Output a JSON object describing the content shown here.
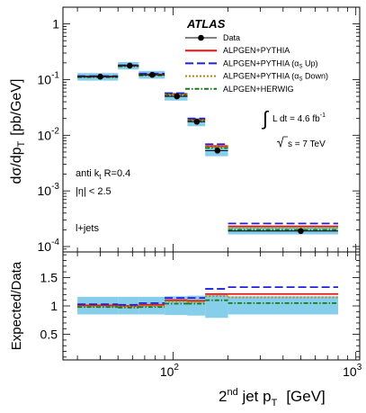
{
  "chart_data": [
    {
      "type": "line",
      "panel": "cross-section",
      "experiment_label": "ATLAS",
      "ylabel": "dσ/dp_T  [pb/GeV]",
      "ylabel_parts": {
        "main": "dσ/dp",
        "sub": "T",
        "unit": "[pb/GeV]"
      },
      "xscale": "log",
      "yscale": "log",
      "xlim": [
        25,
        1050
      ],
      "ylim": [
        8e-05,
        2
      ],
      "y_tick_labels": [
        {
          "value": 0.0001,
          "base": "10",
          "exp": "-4"
        },
        {
          "value": 0.001,
          "base": "10",
          "exp": "-3"
        },
        {
          "value": 0.01,
          "base": "10",
          "exp": "-2"
        },
        {
          "value": 0.1,
          "base": "10",
          "exp": "-1"
        },
        {
          "value": 1,
          "base": "1",
          "exp": ""
        }
      ],
      "bins": [
        [
          30,
          50
        ],
        [
          50,
          65
        ],
        [
          65,
          90
        ],
        [
          90,
          120
        ],
        [
          120,
          150
        ],
        [
          150,
          200
        ],
        [
          200,
          800
        ]
      ],
      "data": {
        "name": "Data",
        "x": [
          40,
          58,
          77,
          105,
          135,
          175,
          500
        ],
        "y": [
          0.113,
          0.178,
          0.122,
          0.05,
          0.0175,
          0.0053,
          0.00019
        ]
      },
      "uncertainty_band": {
        "lo": [
          0.096,
          0.152,
          0.104,
          0.042,
          0.0145,
          0.0042,
          0.000165
        ],
        "hi": [
          0.131,
          0.207,
          0.143,
          0.058,
          0.0205,
          0.0066,
          0.00024
        ]
      },
      "series": [
        {
          "name": "ALPGEN+PYTHIA",
          "color": "#ee1111",
          "dash": "solid",
          "values": [
            0.114,
            0.178,
            0.124,
            0.055,
            0.019,
            0.0064,
            0.00023
          ]
        },
        {
          "name": "ALPGEN+PYTHIA (α_S Up)",
          "color": "#1f1fe0",
          "dash": "long-dash",
          "values": [
            0.116,
            0.181,
            0.128,
            0.057,
            0.02,
            0.0069,
            0.00026
          ]
        },
        {
          "name": "ALPGEN+PYTHIA (α_S Down)",
          "color": "#b8860b",
          "dash": "dotted",
          "values": [
            0.112,
            0.176,
            0.122,
            0.054,
            0.0188,
            0.0062,
            0.00022
          ]
        },
        {
          "name": "ALPGEN+HERWIG",
          "color": "#1a7a1a",
          "dash": "dash-dot",
          "values": [
            0.11,
            0.172,
            0.119,
            0.052,
            0.0182,
            0.0059,
            0.0002
          ]
        }
      ],
      "legend": {
        "placement": "top-right",
        "entries": [
          {
            "label": "Data"
          },
          {
            "label": "ALPGEN+PYTHIA"
          },
          {
            "label": "ALPGEN+PYTHIA (α",
            "sub": "S",
            "suffix": " Up)"
          },
          {
            "label": "ALPGEN+PYTHIA (α",
            "sub": "S",
            "suffix": " Down)"
          },
          {
            "label": "ALPGEN+HERWIG"
          }
        ]
      },
      "annotations": {
        "lumi": "L dt = 4.6 fb",
        "lumi_exp": "-1",
        "energy": "s = 7 TeV",
        "jet_algo": "anti k",
        "jet_algo_sub": "t",
        "jet_radius": " R=0.4",
        "eta_cut": "|η| < 2.5",
        "channel": "l+jets"
      }
    },
    {
      "type": "line",
      "panel": "ratio",
      "ylabel": "Expected/Data",
      "xlabel": "2nd jet p_T [GeV]",
      "xlabel_parts": {
        "pre": "2",
        "sup": "nd",
        "mid": " jet p",
        "sub": "T",
        "unit": "[GeV]"
      },
      "xscale": "log",
      "xlim": [
        25,
        1050
      ],
      "ylim": [
        0.05,
        1.95
      ],
      "y_tick_labels": [
        "0.5",
        "1",
        "1.5"
      ],
      "x_tick_labels": [
        {
          "value": 100,
          "base": "10",
          "exp": "2"
        },
        {
          "value": 1000,
          "base": "10",
          "exp": "3"
        }
      ],
      "bins": [
        [
          30,
          50
        ],
        [
          50,
          65
        ],
        [
          65,
          90
        ],
        [
          90,
          120
        ],
        [
          120,
          150
        ],
        [
          150,
          200
        ],
        [
          200,
          800
        ]
      ],
      "uncertainty_band": {
        "lo": [
          0.85,
          0.85,
          0.85,
          0.84,
          0.83,
          0.79,
          0.85
        ],
        "hi": [
          1.16,
          1.16,
          1.16,
          1.17,
          1.18,
          1.21,
          1.17
        ]
      },
      "series": [
        {
          "name": "ALPGEN+PYTHIA",
          "color": "#ee1111",
          "dash": "solid",
          "values": [
            1.01,
            1.0,
            1.02,
            1.1,
            1.09,
            1.21,
            1.21
          ]
        },
        {
          "name": "ALPGEN+PYTHIA (α_S Up)",
          "color": "#1f1fe0",
          "dash": "long-dash",
          "values": [
            1.03,
            1.02,
            1.05,
            1.14,
            1.14,
            1.3,
            1.33
          ]
        },
        {
          "name": "ALPGEN+PYTHIA (α_S Down)",
          "color": "#b8860b",
          "dash": "dotted",
          "values": [
            0.99,
            0.99,
            1.0,
            1.08,
            1.07,
            1.17,
            1.15
          ]
        },
        {
          "name": "ALPGEN+HERWIG",
          "color": "#1a7a1a",
          "dash": "dash-dot",
          "values": [
            0.98,
            0.97,
            0.98,
            1.04,
            1.04,
            1.1,
            1.05
          ]
        }
      ]
    }
  ]
}
